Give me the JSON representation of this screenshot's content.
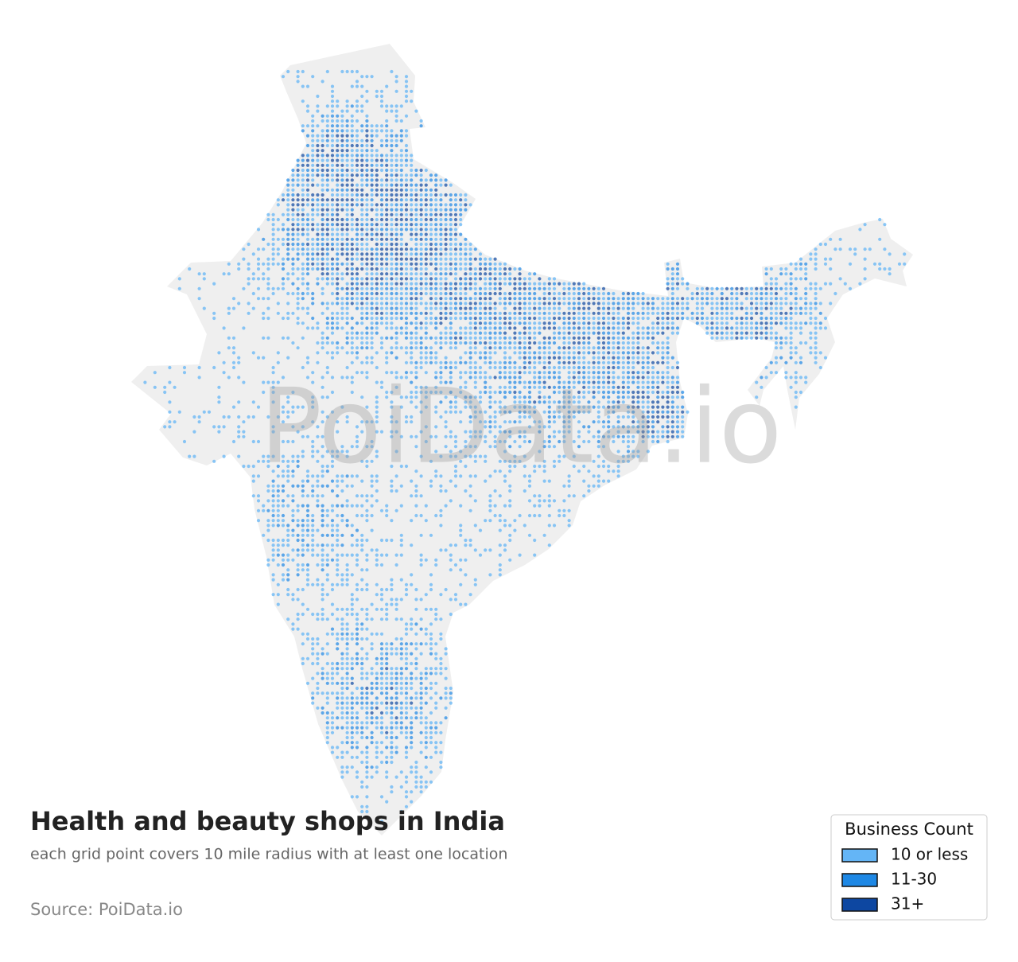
{
  "title": "Health and beauty shops in India",
  "subtitle": "each grid point covers 10 mile radius with at least one location",
  "source": "Source: PoiData.io",
  "watermark": "PoiData.io",
  "legend": {
    "title": "Business Count",
    "items": [
      {
        "label": "10 or less",
        "color": "#64b5f6"
      },
      {
        "label": "11-30",
        "color": "#1e88e5"
      },
      {
        "label": "31+",
        "color": "#0d47a1"
      }
    ]
  }
}
